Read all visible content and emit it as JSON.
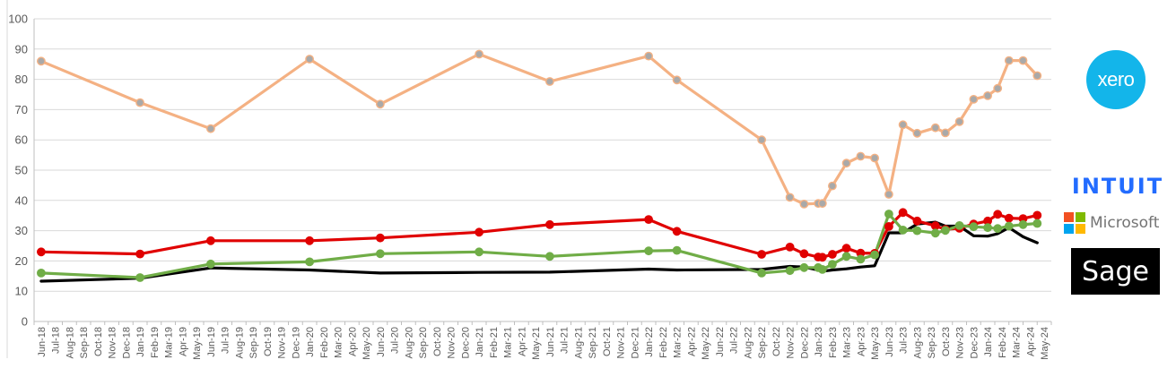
{
  "chart_data": {
    "type": "line",
    "ylim": [
      0,
      100
    ],
    "yticks": [
      0,
      10,
      20,
      30,
      40,
      50,
      60,
      70,
      80,
      90,
      100
    ],
    "grid": true,
    "categories": [
      "Jun-18",
      "Jul-18",
      "Aug-18",
      "Sep-18",
      "Oct-18",
      "Nov-18",
      "Dec-18",
      "Jan-19",
      "Feb-19",
      "Mar-19",
      "Apr-19",
      "May-19",
      "Jun-19",
      "Jul-19",
      "Aug-19",
      "Sep-19",
      "Oct-19",
      "Nov-19",
      "Dec-19",
      "Jan-20",
      "Feb-20",
      "Mar-20",
      "Apr-20",
      "May-20",
      "Jun-20",
      "Jul-20",
      "Aug-20",
      "Sep-20",
      "Oct-20",
      "Nov-20",
      "Dec-20",
      "Jan-21",
      "Feb-21",
      "Mar-21",
      "Apr-21",
      "May-21",
      "Jun-21",
      "Jul-21",
      "Aug-21",
      "Sep-21",
      "Oct-21",
      "Nov-21",
      "Dec-21",
      "Jan-22",
      "Feb-22",
      "Mar-22",
      "Apr-22",
      "May-22",
      "Jun-22",
      "Jul-22",
      "Aug-22",
      "Sep-22",
      "Oct-22",
      "Nov-22",
      "Dec-22",
      "Jan-23",
      "Feb-23",
      "Mar-23",
      "Apr-23",
      "May-23",
      "Jun-23",
      "Jul-23",
      "Aug-23",
      "Sep-23",
      "Oct-23",
      "Nov-23",
      "Dec-23",
      "Jan-24",
      "Feb-24",
      "Mar-24",
      "Apr-24",
      "May-24"
    ],
    "series": [
      {
        "color": "#f4b183",
        "marker": true,
        "marker_color": "#a9a9a9",
        "points": [
          [
            0,
            86
          ],
          [
            7,
            72.3
          ],
          [
            12,
            63.7
          ],
          [
            19,
            86.7
          ],
          [
            24,
            71.8
          ],
          [
            31,
            88.3
          ],
          [
            36,
            79.3
          ],
          [
            43,
            87.7
          ],
          [
            45,
            79.8
          ],
          [
            51,
            60
          ],
          [
            53,
            41
          ],
          [
            54,
            38.8
          ],
          [
            55,
            39
          ],
          [
            55.3,
            39
          ],
          [
            56,
            44.8
          ],
          [
            57,
            52.3
          ],
          [
            58,
            54.6
          ],
          [
            59,
            54
          ],
          [
            60,
            42
          ],
          [
            61,
            65
          ],
          [
            62,
            62.2
          ],
          [
            63.3,
            64
          ],
          [
            64,
            62.3
          ],
          [
            65,
            66
          ],
          [
            66,
            73.4
          ],
          [
            67,
            74.6
          ],
          [
            67.7,
            77
          ],
          [
            68.5,
            86.2
          ],
          [
            69.5,
            86.2
          ],
          [
            70.5,
            81.2
          ]
        ]
      },
      {
        "color": "#e00000",
        "marker": true,
        "marker_color": "#e00000",
        "points": [
          [
            0,
            23
          ],
          [
            7,
            22.3
          ],
          [
            12,
            26.7
          ],
          [
            19,
            26.7
          ],
          [
            24,
            27.6
          ],
          [
            31,
            29.5
          ],
          [
            36,
            32
          ],
          [
            43,
            33.7
          ],
          [
            45,
            29.8
          ],
          [
            51,
            22.2
          ],
          [
            53,
            24.6
          ],
          [
            54,
            22.4
          ],
          [
            55,
            21.3
          ],
          [
            55.3,
            21.2
          ],
          [
            56,
            22.2
          ],
          [
            57,
            24.2
          ],
          [
            58,
            22.6
          ],
          [
            59,
            22.5
          ],
          [
            60,
            31.4
          ],
          [
            61,
            36
          ],
          [
            62,
            33.2
          ],
          [
            63.3,
            31.6
          ],
          [
            64,
            30.4
          ],
          [
            65,
            30.8
          ],
          [
            66,
            32.2
          ],
          [
            67,
            33.2
          ],
          [
            67.7,
            35.4
          ],
          [
            68.5,
            34.1
          ],
          [
            69.5,
            34
          ],
          [
            70.5,
            35.1
          ]
        ]
      },
      {
        "color": "#70ad47",
        "marker": true,
        "marker_color": "#70ad47",
        "points": [
          [
            0,
            16
          ],
          [
            7,
            14.5
          ],
          [
            12,
            19
          ],
          [
            19,
            19.7
          ],
          [
            24,
            22.4
          ],
          [
            31,
            23
          ],
          [
            36,
            21.5
          ],
          [
            43,
            23.3
          ],
          [
            45,
            23.5
          ],
          [
            51,
            16
          ],
          [
            53,
            16.8
          ],
          [
            54,
            17.8
          ],
          [
            55,
            17.8
          ],
          [
            55.3,
            17.2
          ],
          [
            56,
            18.9
          ],
          [
            57,
            21.5
          ],
          [
            58,
            20.6
          ],
          [
            59,
            22
          ],
          [
            60,
            35.5
          ],
          [
            61,
            30.2
          ],
          [
            62,
            30
          ],
          [
            63.3,
            29.2
          ],
          [
            64,
            30.1
          ],
          [
            65,
            31.7
          ],
          [
            66,
            31.3
          ],
          [
            67,
            31
          ],
          [
            67.7,
            30.7
          ],
          [
            68.5,
            31.5
          ],
          [
            69.5,
            32
          ],
          [
            70.5,
            32.4
          ]
        ]
      },
      {
        "color": "#000000",
        "marker": false,
        "points": [
          [
            0,
            13.3
          ],
          [
            7,
            14.3
          ],
          [
            12,
            17.7
          ],
          [
            19,
            17
          ],
          [
            24,
            16
          ],
          [
            31,
            16.2
          ],
          [
            36,
            16.3
          ],
          [
            43,
            17.3
          ],
          [
            45,
            17
          ],
          [
            51,
            17.2
          ],
          [
            53,
            18.2
          ],
          [
            54,
            18
          ],
          [
            55,
            17
          ],
          [
            55.3,
            16.6
          ],
          [
            56,
            17
          ],
          [
            57,
            17.4
          ],
          [
            58,
            18
          ],
          [
            59,
            18.4
          ],
          [
            60,
            29.3
          ],
          [
            61,
            29.3
          ],
          [
            62,
            32.2
          ],
          [
            63.3,
            32.8
          ],
          [
            64,
            31.5
          ],
          [
            65,
            31.5
          ],
          [
            66,
            28.3
          ],
          [
            67,
            28.2
          ],
          [
            67.7,
            29
          ],
          [
            68.5,
            31
          ],
          [
            69.5,
            28
          ],
          [
            70.5,
            26
          ]
        ]
      }
    ]
  },
  "logos": {
    "xero": {
      "text": "xero",
      "color": "#13b5ea"
    },
    "intuit": {
      "text": "INTUIT",
      "color": "#236cff"
    },
    "microsoft": {
      "text": "Microsoft",
      "colors": [
        "#f25022",
        "#7fba00",
        "#00a4ef",
        "#ffb900"
      ]
    },
    "sage": {
      "text": "Sage",
      "color": "#000000"
    }
  }
}
